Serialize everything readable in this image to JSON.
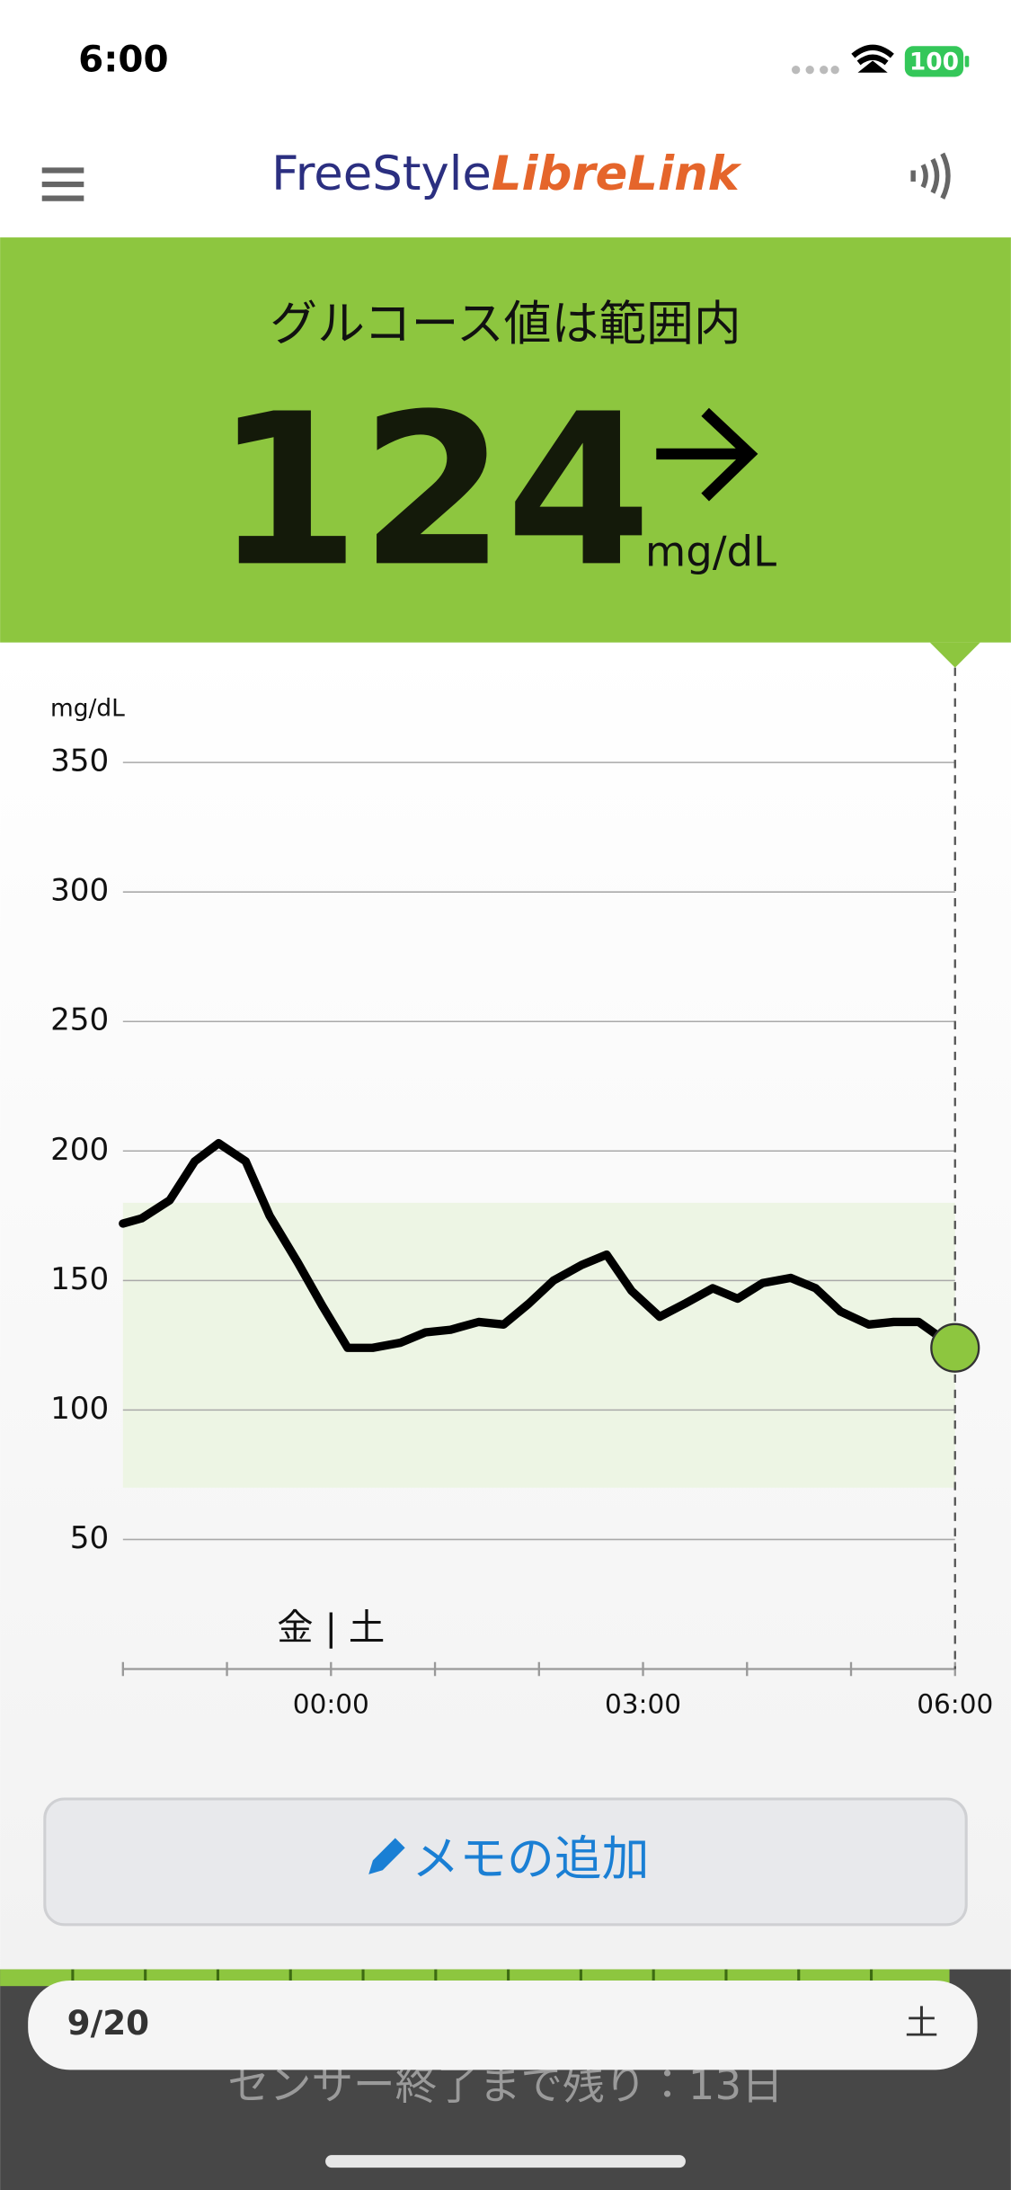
{
  "status_bar": {
    "time": "6:00",
    "battery": "100"
  },
  "header": {
    "logo_brand": "FreeStyle",
    "logo_product": "LibreLink"
  },
  "banner": {
    "status": "グルコース値は範囲内",
    "value": "124",
    "unit": "mg/dL"
  },
  "chart_data": {
    "type": "line",
    "y_axis_label": "mg/dL",
    "x": [
      -2,
      -1.82,
      -1.55,
      -1.31,
      -1.08,
      -0.82,
      -0.59,
      -0.32,
      -0.08,
      0.16,
      0.4,
      0.67,
      0.91,
      1.15,
      1.42,
      1.66,
      1.9,
      2.14,
      2.41,
      2.65,
      2.89,
      3.16,
      3.4,
      3.67,
      3.91,
      4.15,
      4.42,
      4.66,
      4.9,
      5.17,
      5.41,
      5.65,
      6
    ],
    "values": [
      172,
      174,
      181,
      196,
      203,
      196,
      175,
      157,
      140,
      124,
      124,
      126,
      130,
      131,
      134,
      133,
      141,
      150,
      156,
      160,
      146,
      136,
      141,
      147,
      143,
      149,
      151,
      147,
      138,
      133,
      134,
      134,
      124
    ],
    "color": "#000000",
    "current_point_color": "#8dc63f",
    "target_range": [
      70,
      180
    ],
    "target_color": "#edf5e4",
    "day_change_label": "金 | 土",
    "day_change_x": 0,
    "xlim": [
      -2,
      6
    ],
    "xticks": [
      {
        "value": 0,
        "label": "00:00"
      },
      {
        "value": 3,
        "label": "03:00"
      },
      {
        "value": 6,
        "label": "06:00"
      }
    ],
    "xminor_ticks": [
      -2,
      -1,
      1,
      2,
      4,
      5
    ],
    "ylim": [
      0,
      385
    ],
    "yticks": [
      50,
      100,
      150,
      200,
      250,
      300,
      350
    ],
    "grid": true
  },
  "memo_button": "メモの追加",
  "date_bar": {
    "date": "9/20",
    "weekday": "土"
  },
  "sensor_status": "センサー終了まで残り：13日"
}
